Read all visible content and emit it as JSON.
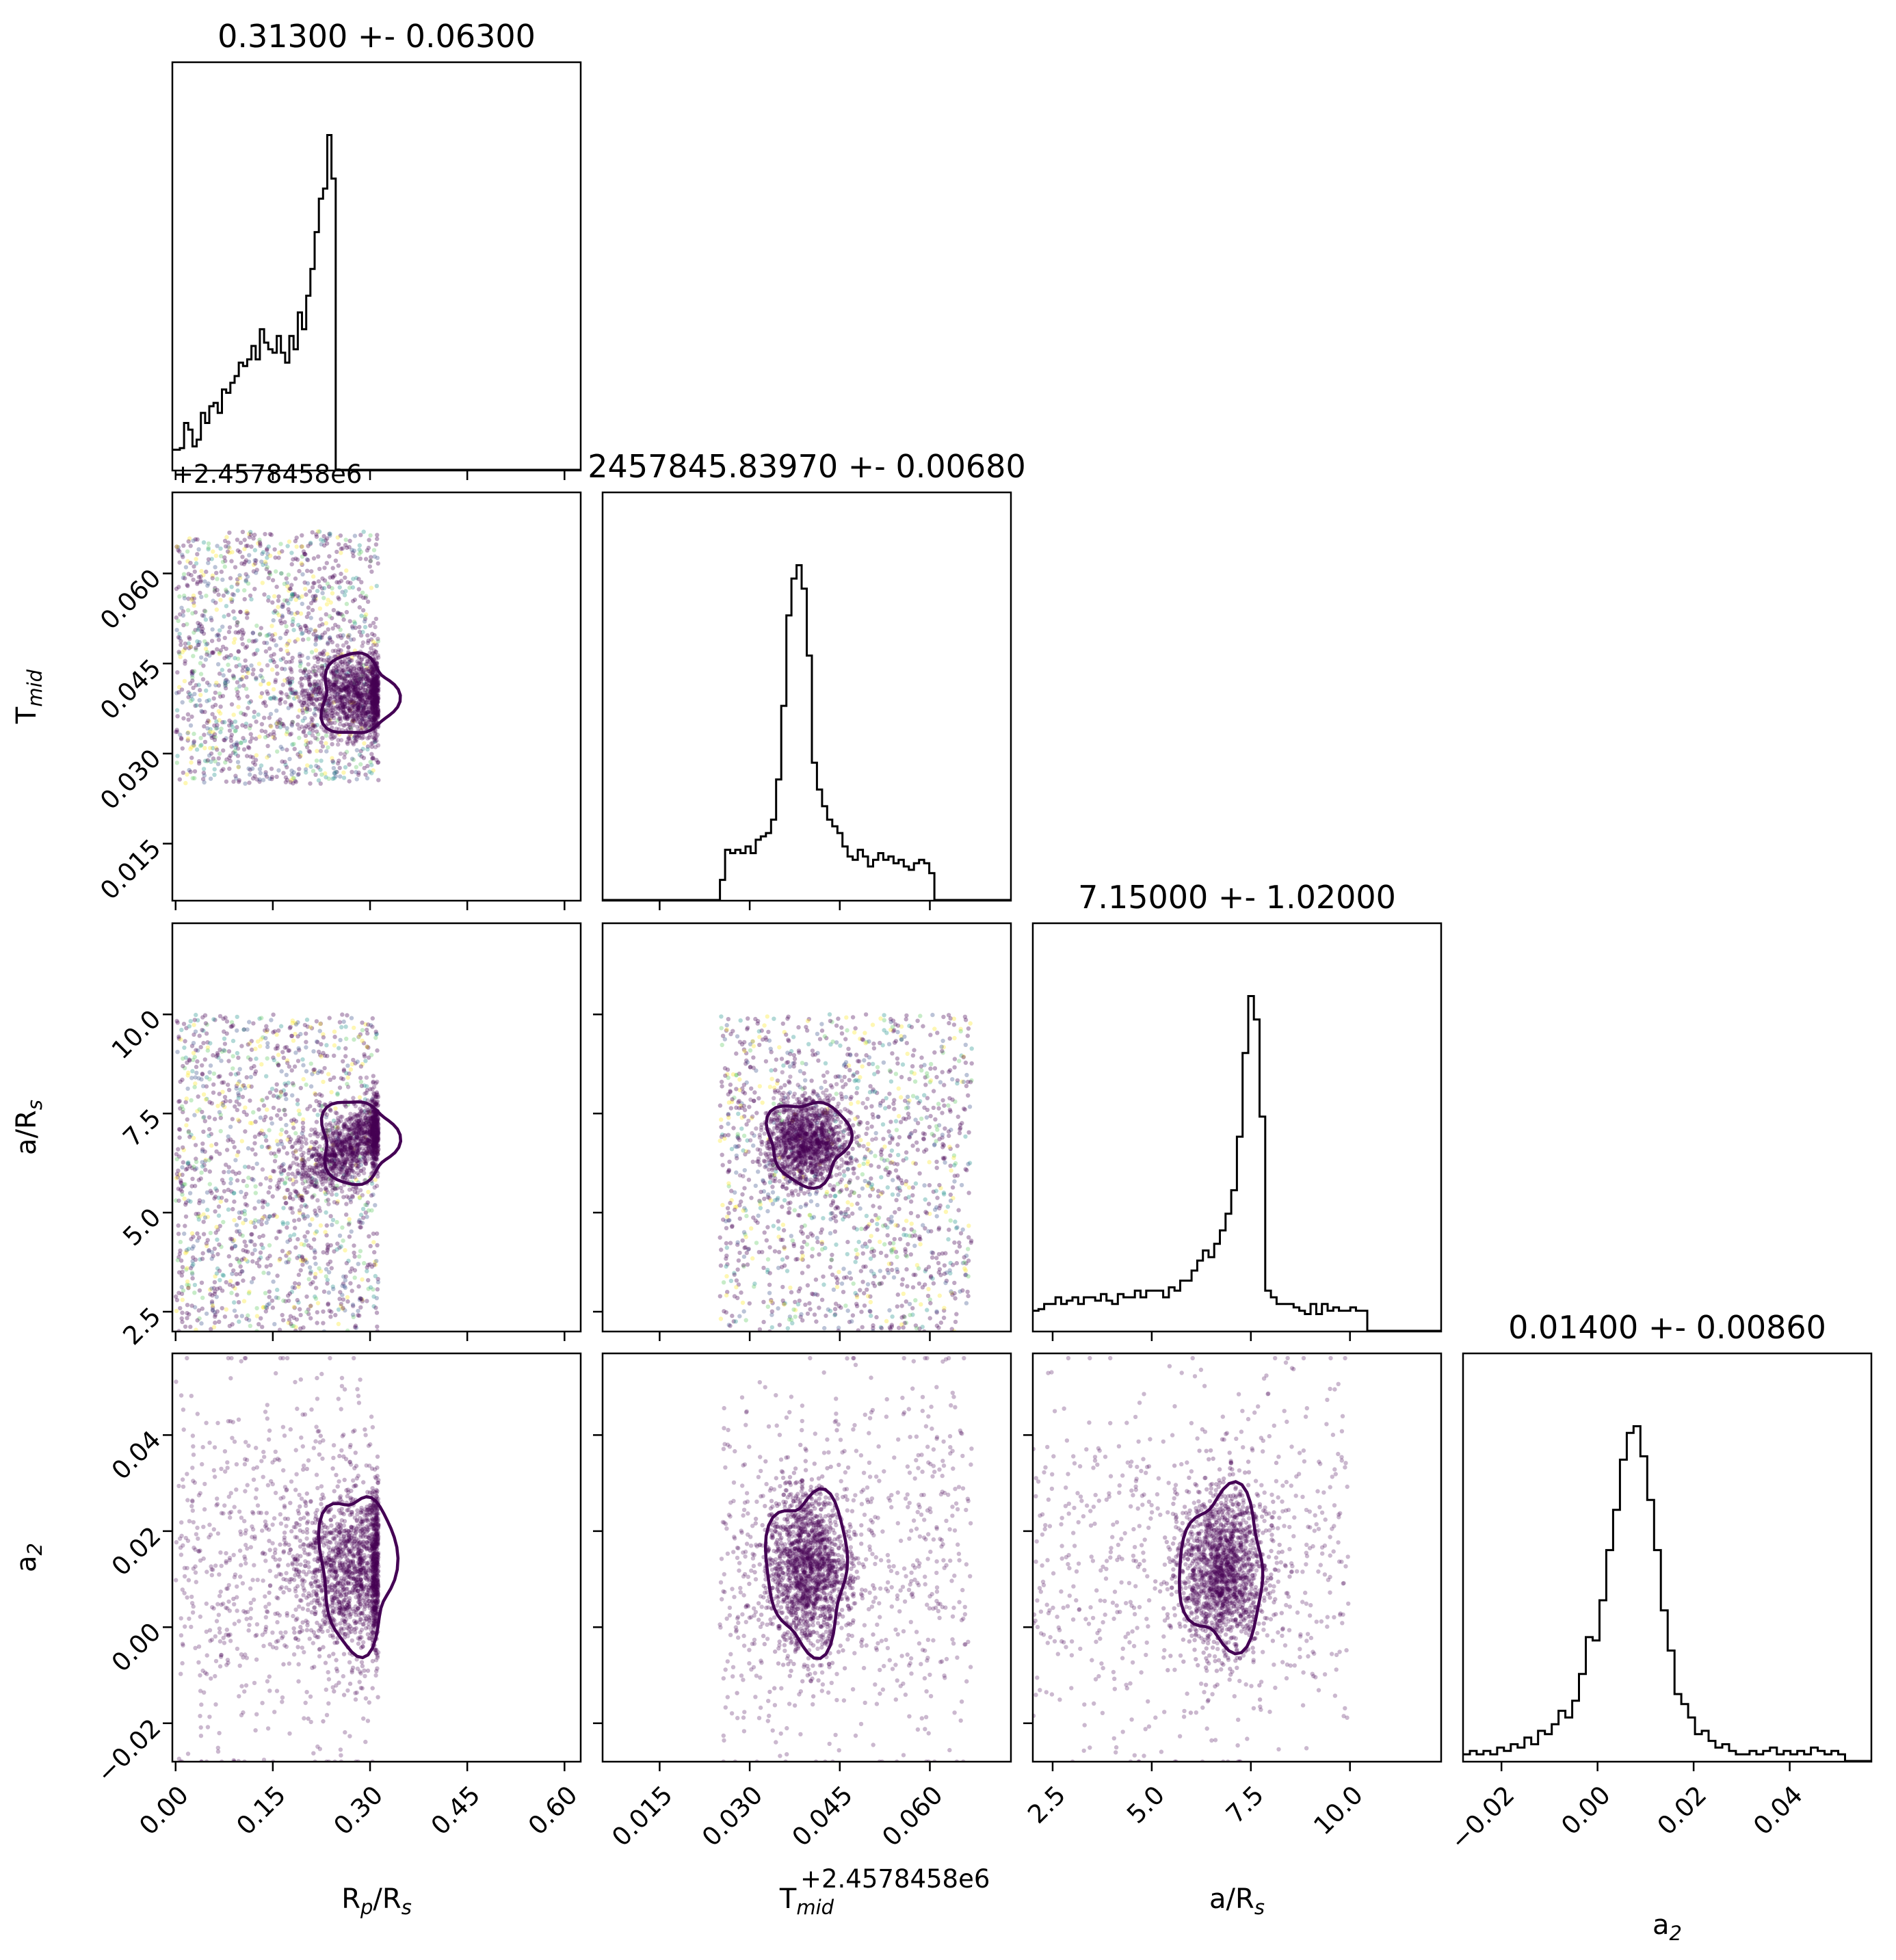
{
  "chart_data": {
    "type": "scatter",
    "subtype": "corner-plot",
    "parameters": [
      {
        "key": "rprs",
        "label": "R",
        "label_sub": "p",
        "label_tail": "/R",
        "label_tail_sub": "s",
        "range": [
          -0.005,
          0.625
        ]
      },
      {
        "key": "tmid",
        "label": "T",
        "label_sub": "mid",
        "label_tail": "",
        "label_tail_sub": "",
        "range": [
          0.0055,
          0.0735
        ],
        "offset_text": "+2.4578458e6"
      },
      {
        "key": "ars",
        "label": "a/R",
        "label_sub": "s",
        "label_tail": "",
        "label_tail_sub": "",
        "range": [
          2.0,
          12.3
        ]
      },
      {
        "key": "a2",
        "label": "a",
        "label_sub": "2",
        "label_tail": "",
        "label_tail_sub": "",
        "range": [
          -0.028,
          0.057
        ]
      }
    ],
    "titles": [
      "0.31300 +- 0.06300",
      "2457845.83970 +- 0.00680",
      "7.15000 +- 1.02000",
      "0.01400 +- 0.00860"
    ],
    "ticks": {
      "rprs": [
        "0.00",
        "0.15",
        "0.30",
        "0.45",
        "0.60"
      ],
      "tmid": [
        "0.015",
        "0.030",
        "0.045",
        "0.060"
      ],
      "ars": [
        "2.5",
        "5.0",
        "7.5",
        "10.0"
      ],
      "a2": [
        "−0.02",
        "0.00",
        "0.02",
        "0.04"
      ]
    },
    "histograms": {
      "rprs": {
        "bin_start": 0.0,
        "bin_width": 0.0065,
        "counts": [
          0.06,
          0.065,
          0.14,
          0.12,
          0.07,
          0.09,
          0.17,
          0.14,
          0.19,
          0.2,
          0.17,
          0.24,
          0.23,
          0.26,
          0.28,
          0.32,
          0.31,
          0.33,
          0.37,
          0.33,
          0.42,
          0.38,
          0.36,
          0.35,
          0.4,
          0.35,
          0.32,
          0.4,
          0.36,
          0.47,
          0.42,
          0.52,
          0.6,
          0.71,
          0.81,
          0.84,
          1.0,
          0.87,
          0.0
        ]
      },
      "tmid": {
        "bin_start": 0.0055,
        "bin_width": 0.00085,
        "counts": [
          0,
          0,
          0,
          0,
          0,
          0,
          0,
          0,
          0,
          0,
          0,
          0,
          0,
          0,
          0,
          0,
          0,
          0,
          0,
          0,
          0,
          0,
          0,
          0.06,
          0.15,
          0.14,
          0.15,
          0.14,
          0.16,
          0.14,
          0.18,
          0.19,
          0.2,
          0.24,
          0.36,
          0.58,
          0.85,
          0.96,
          1.0,
          0.93,
          0.73,
          0.41,
          0.33,
          0.28,
          0.24,
          0.22,
          0.2,
          0.16,
          0.13,
          0.12,
          0.15,
          0.13,
          0.1,
          0.12,
          0.14,
          0.12,
          0.13,
          0.11,
          0.12,
          0.1,
          0.09,
          0.11,
          0.12,
          0.11,
          0.08,
          0.0
        ]
      },
      "ars": {
        "bin_start": 2.0,
        "bin_width": 0.143,
        "counts": [
          0.06,
          0.065,
          0.08,
          0.08,
          0.1,
          0.08,
          0.09,
          0.1,
          0.08,
          0.1,
          0.1,
          0.09,
          0.11,
          0.09,
          0.08,
          0.11,
          0.1,
          0.1,
          0.12,
          0.1,
          0.12,
          0.12,
          0.12,
          0.1,
          0.13,
          0.12,
          0.15,
          0.15,
          0.18,
          0.21,
          0.24,
          0.22,
          0.26,
          0.3,
          0.35,
          0.42,
          0.58,
          0.83,
          1.0,
          0.93,
          0.64,
          0.12,
          0.1,
          0.08,
          0.08,
          0.08,
          0.07,
          0.06,
          0.05,
          0.08,
          0.05,
          0.08,
          0.06,
          0.07,
          0.06,
          0.06,
          0.07,
          0.06,
          0.06,
          0.0
        ]
      },
      "a2": {
        "bin_start": -0.028,
        "bin_width": 0.00142,
        "counts": [
          0.02,
          0.03,
          0.02,
          0.03,
          0.02,
          0.04,
          0.03,
          0.05,
          0.04,
          0.07,
          0.05,
          0.09,
          0.08,
          0.11,
          0.15,
          0.13,
          0.18,
          0.26,
          0.37,
          0.36,
          0.48,
          0.63,
          0.75,
          0.9,
          0.98,
          1.0,
          0.91,
          0.78,
          0.63,
          0.45,
          0.33,
          0.2,
          0.17,
          0.13,
          0.08,
          0.09,
          0.06,
          0.04,
          0.05,
          0.03,
          0.02,
          0.02,
          0.03,
          0.02,
          0.03,
          0.04,
          0.02,
          0.03,
          0.02,
          0.03,
          0.02,
          0.04,
          0.03,
          0.02,
          0.03,
          0.02,
          0.0
        ]
      }
    },
    "scatter_bounds": {
      "rprs": [
        0.0,
        0.313
      ],
      "tmid": [
        0.025,
        0.067
      ],
      "ars": [
        2.0,
        10.0
      ],
      "a2": [
        -0.028,
        0.056
      ]
    },
    "centers": {
      "rprs": 0.28,
      "tmid": 0.0397,
      "ars": 6.8,
      "a2": 0.012
    },
    "contour_color": "#440154",
    "point_colors": [
      "#440154",
      "#3b528b",
      "#21918c",
      "#5ec962",
      "#fde725"
    ]
  }
}
